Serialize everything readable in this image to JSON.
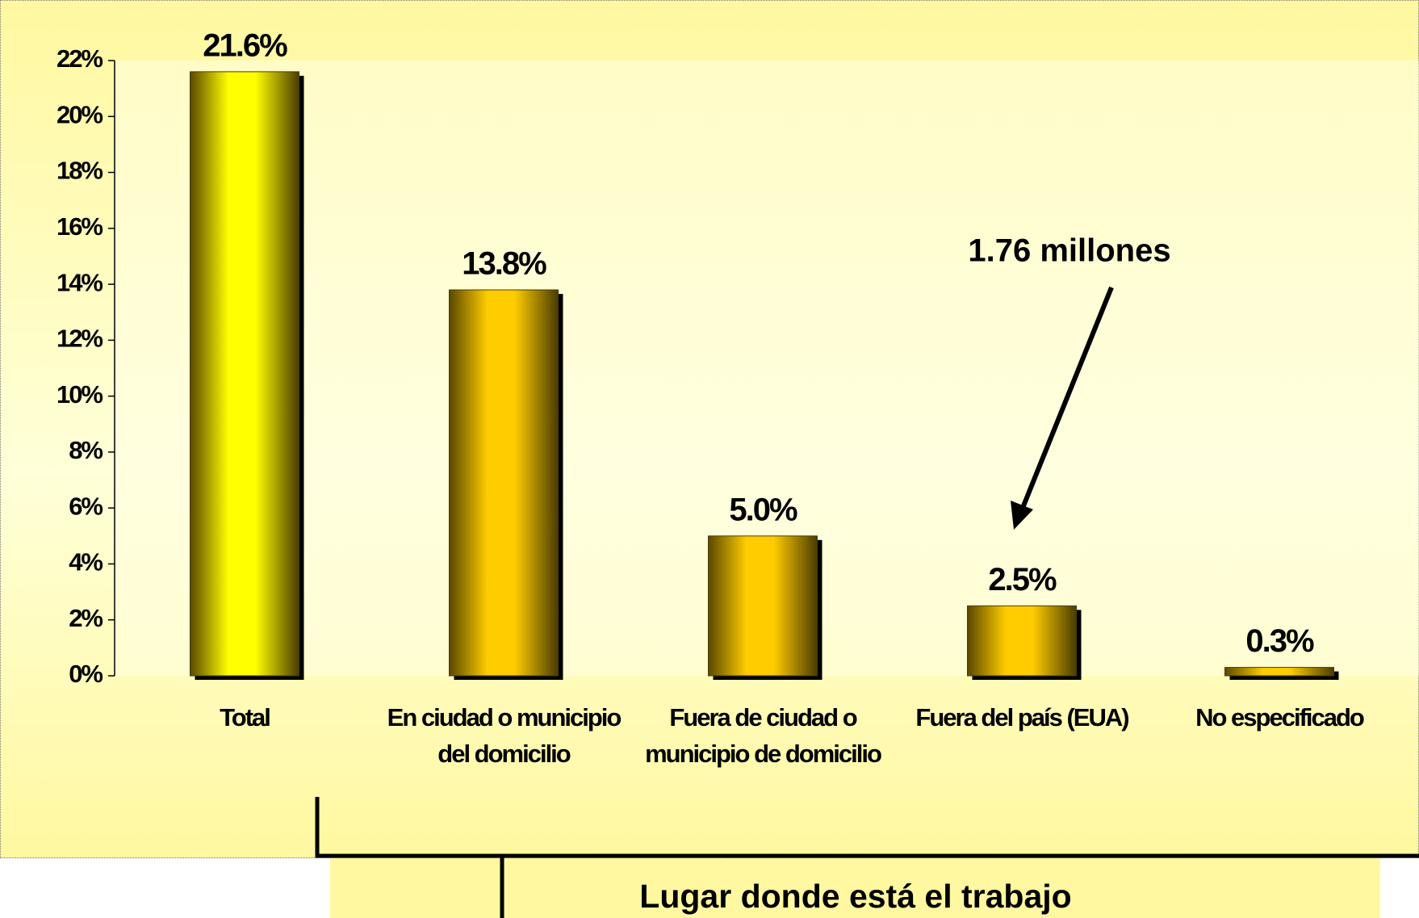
{
  "chart_data": {
    "type": "bar",
    "categories": [
      "Total",
      "En ciudad o municipio del domicilio",
      "Fuera de ciudad o municipio de domicilio",
      "Fuera del país (EUA)",
      "No especificado"
    ],
    "values": [
      21.6,
      13.8,
      5.0,
      2.5,
      0.3
    ],
    "value_labels": [
      "21.6%",
      "13.8%",
      "5.0%",
      "2.5%",
      "0.3%"
    ],
    "colors": [
      "#ffff00",
      "#ffcc00",
      "#ffcc00",
      "#ffcc00",
      "#ffcc00"
    ],
    "ylim": [
      0,
      22
    ],
    "yticks": [
      {
        "value": 0,
        "label": "0%"
      },
      {
        "value": 2,
        "label": "2%"
      },
      {
        "value": 4,
        "label": "4%"
      },
      {
        "value": 6,
        "label": "6%"
      },
      {
        "value": 8,
        "label": "8%"
      },
      {
        "value": 10,
        "label": "10%"
      },
      {
        "value": 12,
        "label": "12%"
      },
      {
        "value": 14,
        "label": "14%"
      },
      {
        "value": 16,
        "label": "16%"
      },
      {
        "value": 18,
        "label": "18%"
      },
      {
        "value": 20,
        "label": "20%"
      },
      {
        "value": 22,
        "label": "22%"
      }
    ],
    "annotation": "1.76  millones",
    "xlabel": "Lugar donde está el trabajo"
  }
}
